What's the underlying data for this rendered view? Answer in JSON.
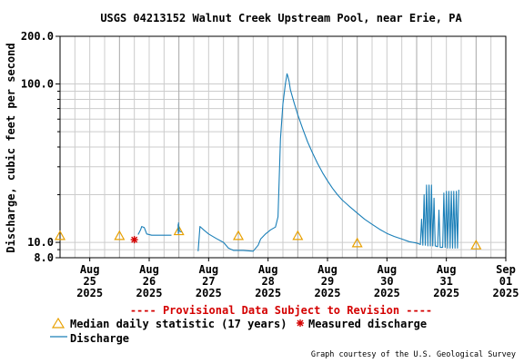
{
  "chart_data": {
    "type": "line",
    "title": "USGS 04213152 Walnut Creek Upstream Pool, near Erie, PA",
    "ylabel": "Discharge, cubic feet per second",
    "yscale": "log",
    "ylim": [
      8,
      200
    ],
    "ytick_labels": [
      "8.0",
      "10.0",
      "100.0",
      "200.0"
    ],
    "xlim": [
      "2025-08-25T00:00",
      "2025-09-01T12:00"
    ],
    "xtick_labels": [
      {
        "month": "Aug",
        "day": "25",
        "year": "2025"
      },
      {
        "month": "Aug",
        "day": "26",
        "year": "2025"
      },
      {
        "month": "Aug",
        "day": "27",
        "year": "2025"
      },
      {
        "month": "Aug",
        "day": "28",
        "year": "2025"
      },
      {
        "month": "Aug",
        "day": "29",
        "year": "2025"
      },
      {
        "month": "Aug",
        "day": "30",
        "year": "2025"
      },
      {
        "month": "Aug",
        "day": "31",
        "year": "2025"
      },
      {
        "month": "Sep",
        "day": "01",
        "year": "2025"
      }
    ],
    "grid": true,
    "legend_placement": "bottom",
    "provisional_note": "---- Provisional Data Subject to Revision ----",
    "credit": "Graph courtesy of the U.S. Geological Survey",
    "legend": {
      "median": "Median daily statistic (17 years)",
      "measured": "Measured discharge",
      "discharge": "Discharge"
    },
    "colors": {
      "discharge": "#1a7fb8",
      "median": "#e8a000",
      "measured": "#d40000",
      "note": "#d40000",
      "grid": "#cccccc"
    },
    "median_daily": [
      {
        "x": "2025-08-25T00:00",
        "y": 11.0
      },
      {
        "x": "2025-08-26T00:00",
        "y": 11.0
      },
      {
        "x": "2025-08-27T00:00",
        "y": 11.8
      },
      {
        "x": "2025-08-28T00:00",
        "y": 11.0
      },
      {
        "x": "2025-08-29T00:00",
        "y": 11.0
      },
      {
        "x": "2025-08-30T00:00",
        "y": 9.9
      },
      {
        "x": "2025-09-01T00:00",
        "y": 9.6
      }
    ],
    "measured_discharge": [
      {
        "x": "2025-08-26T06:00",
        "y": 10.4
      }
    ],
    "series": [
      {
        "name": "Discharge",
        "segments": [
          [
            [
              "2025-08-26T07:30",
              11.2
            ],
            [
              "2025-08-26T08:30",
              12.0
            ],
            [
              "2025-08-26T09:00",
              12.6
            ],
            [
              "2025-08-26T10:00",
              12.4
            ],
            [
              "2025-08-26T11:00",
              11.3
            ],
            [
              "2025-08-26T13:00",
              11.1
            ],
            [
              "2025-08-26T17:00",
              11.1
            ],
            [
              "2025-08-26T21:00",
              11.1
            ]
          ],
          [
            [
              "2025-08-26T23:40",
              13.0
            ],
            [
              "2025-08-26T23:45",
              11.4
            ],
            [
              "2025-08-26T23:50",
              13.3
            ],
            [
              "2025-08-26T23:55",
              12.0
            ],
            [
              "2025-08-27T00:00",
              12.5
            ],
            [
              "2025-08-27T00:10",
              11.8
            ],
            [
              "2025-08-27T01:00",
              11.6
            ]
          ],
          [
            [
              "2025-08-27T07:45",
              8.8
            ],
            [
              "2025-08-27T08:30",
              12.6
            ],
            [
              "2025-08-27T10:00",
              12.0
            ],
            [
              "2025-08-27T12:00",
              11.3
            ],
            [
              "2025-08-27T15:00",
              10.6
            ],
            [
              "2025-08-27T18:00",
              10.0
            ],
            [
              "2025-08-27T20:00",
              9.2
            ],
            [
              "2025-08-27T22:00",
              8.9
            ],
            [
              "2025-08-28T02:00",
              8.9
            ],
            [
              "2025-08-28T06:00",
              8.8
            ],
            [
              "2025-08-28T08:00",
              9.6
            ],
            [
              "2025-08-28T09:00",
              10.5
            ],
            [
              "2025-08-28T11:00",
              11.3
            ],
            [
              "2025-08-28T13:00",
              12.0
            ],
            [
              "2025-08-28T15:00",
              12.5
            ],
            [
              "2025-08-28T16:00",
              14.5
            ],
            [
              "2025-08-28T16:30",
              25.0
            ],
            [
              "2025-08-28T17:00",
              45.0
            ],
            [
              "2025-08-28T18:00",
              75.0
            ],
            [
              "2025-08-28T19:00",
              100.0
            ],
            [
              "2025-08-28T19:40",
              116.0
            ],
            [
              "2025-08-28T20:00",
              112.0
            ],
            [
              "2025-08-28T20:30",
              104.0
            ],
            [
              "2025-08-28T21:00",
              92.0
            ],
            [
              "2025-08-28T22:30",
              76.0
            ],
            [
              "2025-08-29T00:00",
              64.0
            ],
            [
              "2025-08-29T02:00",
              52.0
            ],
            [
              "2025-08-29T04:00",
              43.0
            ],
            [
              "2025-08-29T06:00",
              36.5
            ],
            [
              "2025-08-29T08:00",
              31.5
            ],
            [
              "2025-08-29T10:00",
              27.5
            ],
            [
              "2025-08-29T12:00",
              24.5
            ],
            [
              "2025-08-29T14:00",
              22.0
            ],
            [
              "2025-08-29T16:00",
              20.0
            ],
            [
              "2025-08-29T18:00",
              18.5
            ],
            [
              "2025-08-29T21:00",
              16.8
            ],
            [
              "2025-08-30T00:00",
              15.3
            ],
            [
              "2025-08-30T03:00",
              14.0
            ],
            [
              "2025-08-30T06:00",
              13.0
            ],
            [
              "2025-08-30T09:00",
              12.1
            ],
            [
              "2025-08-30T12:00",
              11.4
            ],
            [
              "2025-08-30T15:00",
              10.9
            ],
            [
              "2025-08-30T18:00",
              10.5
            ],
            [
              "2025-08-30T21:00",
              10.1
            ],
            [
              "2025-08-31T00:00",
              9.9
            ],
            [
              "2025-08-31T01:30",
              9.7
            ],
            [
              "2025-08-31T02:00",
              14.0
            ],
            [
              "2025-08-31T02:30",
              9.6
            ],
            [
              "2025-08-31T03:00",
              20.0
            ],
            [
              "2025-08-31T03:30",
              9.6
            ],
            [
              "2025-08-31T04:00",
              23.0
            ],
            [
              "2025-08-31T04:30",
              9.5
            ],
            [
              "2025-08-31T05:00",
              23.0
            ],
            [
              "2025-08-31T05:30",
              9.5
            ],
            [
              "2025-08-31T06:00",
              23.0
            ],
            [
              "2025-08-31T06:30",
              9.5
            ],
            [
              "2025-08-31T07:00",
              19.0
            ],
            [
              "2025-08-31T07:30",
              9.5
            ],
            [
              "2025-08-31T08:30",
              9.4
            ],
            [
              "2025-08-31T09:00",
              16.0
            ],
            [
              "2025-08-31T09:30",
              9.3
            ],
            [
              "2025-08-31T10:30",
              9.3
            ],
            [
              "2025-08-31T11:00",
              20.5
            ],
            [
              "2025-08-31T11:30",
              9.3
            ],
            [
              "2025-08-31T12:00",
              21.0
            ],
            [
              "2025-08-31T12:30",
              9.2
            ],
            [
              "2025-08-31T13:00",
              21.0
            ],
            [
              "2025-08-31T13:30",
              9.2
            ],
            [
              "2025-08-31T14:00",
              21.0
            ],
            [
              "2025-08-31T14:30",
              9.2
            ],
            [
              "2025-08-31T15:00",
              21.0
            ],
            [
              "2025-08-31T15:30",
              9.2
            ],
            [
              "2025-08-31T16:00",
              21.0
            ],
            [
              "2025-08-31T16:30",
              9.2
            ],
            [
              "2025-08-31T17:00",
              21.5
            ]
          ]
        ]
      }
    ]
  }
}
